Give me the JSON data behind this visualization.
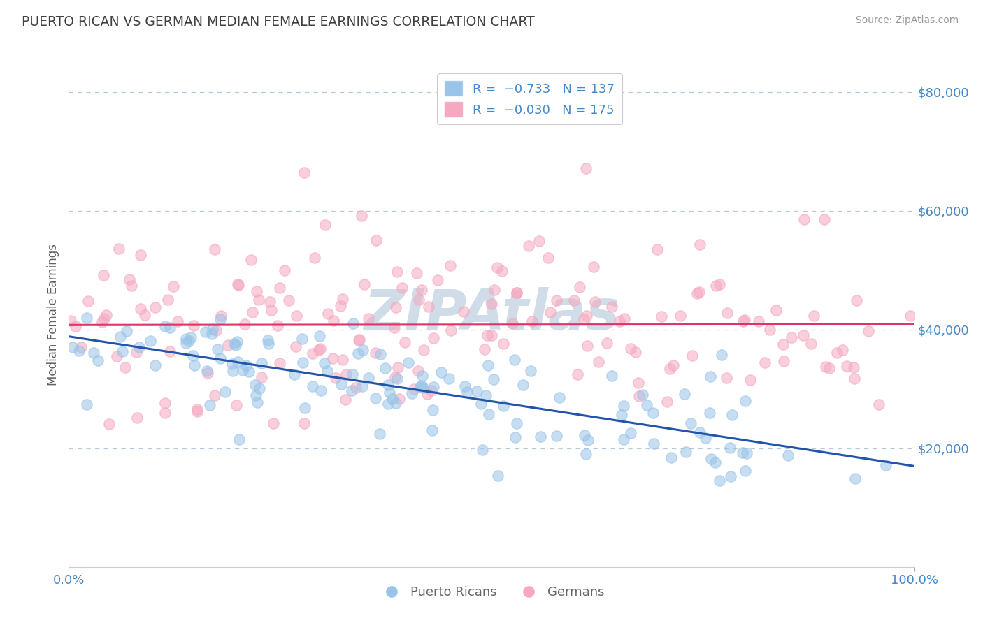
{
  "title": "PUERTO RICAN VS GERMAN MEDIAN FEMALE EARNINGS CORRELATION CHART",
  "source": "Source: ZipAtlas.com",
  "ylabel": "Median Female Earnings",
  "x_tick_labels": [
    "0.0%",
    "100.0%"
  ],
  "y_tick_values": [
    20000,
    40000,
    60000,
    80000
  ],
  "blue_scatter_color": "#99c4e8",
  "pink_scatter_color": "#f5a8c0",
  "blue_line_color": "#2255aa",
  "pink_line_color": "#dd3366",
  "title_color": "#404040",
  "axis_label_color": "#606060",
  "tick_label_color": "#4488cc",
  "grid_color": "#b8c8d8",
  "watermark_color": "#d0dde8",
  "background_color": "#ffffff",
  "R_blue": -0.733,
  "N_blue": 137,
  "R_pink": -0.03,
  "N_pink": 175,
  "seed": 7,
  "x_range": [
    0.0,
    1.0
  ],
  "y_range": [
    0,
    85000
  ],
  "blue_intercept": 42000,
  "blue_slope": -22000,
  "pink_intercept": 40500,
  "pink_slope": -1000
}
